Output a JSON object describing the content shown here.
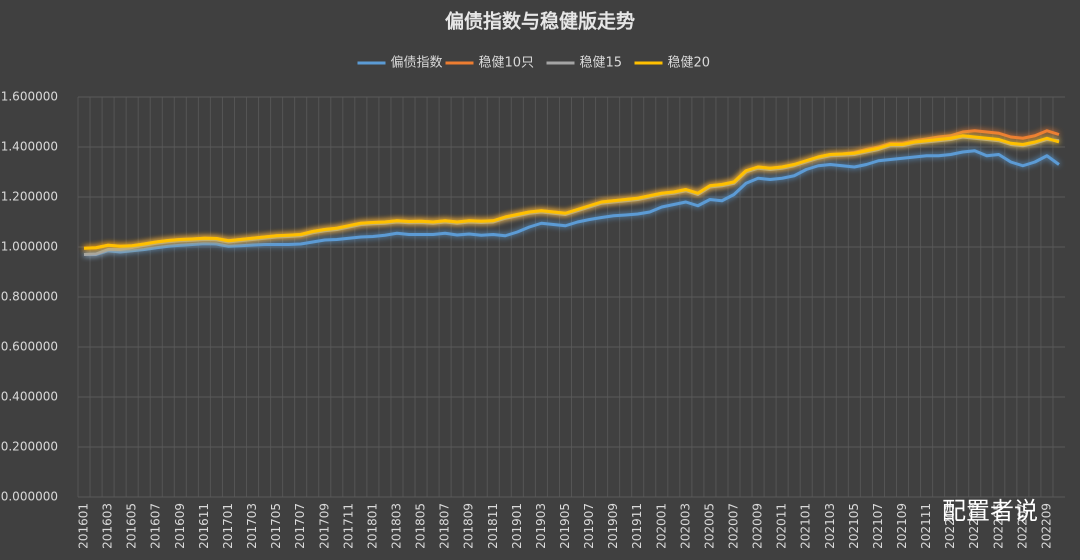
{
  "chart_data": {
    "type": "line",
    "title": "偏债指数与稳健版走势",
    "watermark": "配置者说",
    "categories": [
      "201601",
      null,
      "201603",
      null,
      "201605",
      null,
      "201607",
      null,
      "201609",
      null,
      "201611",
      null,
      "201701",
      null,
      "201703",
      null,
      "201705",
      null,
      "201707",
      null,
      "201709",
      null,
      "201711",
      null,
      "201801",
      null,
      "201803",
      null,
      "201805",
      null,
      "201807",
      null,
      "201809",
      null,
      "201811",
      null,
      "201901",
      null,
      "201903",
      null,
      "201905",
      null,
      "201907",
      null,
      "201909",
      null,
      "201911",
      null,
      "202001",
      null,
      "202003",
      null,
      "202005",
      null,
      "202007",
      null,
      "202009",
      null,
      "202011",
      null,
      "202101",
      null,
      "202103",
      null,
      "202105",
      null,
      "202107",
      null,
      "202109",
      null,
      "202111",
      null,
      "202201",
      null,
      "202203",
      null,
      "202205",
      null,
      "202207",
      null,
      "202209",
      null
    ],
    "series": [
      {
        "name": "偏债指数",
        "color": "#5b9bd5",
        "values": [
          0.97,
          0.97,
          0.985,
          0.98,
          0.985,
          0.99,
          0.997,
          1.003,
          1.007,
          1.01,
          1.013,
          1.012,
          1.003,
          1.005,
          1.008,
          1.01,
          1.01,
          1.01,
          1.012,
          1.02,
          1.028,
          1.03,
          1.035,
          1.04,
          1.042,
          1.047,
          1.055,
          1.05,
          1.05,
          1.05,
          1.055,
          1.048,
          1.052,
          1.047,
          1.05,
          1.045,
          1.06,
          1.08,
          1.095,
          1.09,
          1.085,
          1.1,
          1.11,
          1.118,
          1.125,
          1.128,
          1.132,
          1.14,
          1.16,
          1.17,
          1.18,
          1.165,
          1.19,
          1.185,
          1.21,
          1.255,
          1.275,
          1.27,
          1.275,
          1.285,
          1.31,
          1.325,
          1.33,
          1.325,
          1.32,
          1.33,
          1.345,
          1.35,
          1.355,
          1.36,
          1.365,
          1.365,
          1.37,
          1.38,
          1.385,
          1.365,
          1.37,
          1.34,
          1.325,
          1.34,
          1.365,
          1.33
        ]
      },
      {
        "name": "稳健10只",
        "color": "#ed7d31",
        "values": [
          0.995,
          0.997,
          1.007,
          1.003,
          1.005,
          1.012,
          1.02,
          1.026,
          1.03,
          1.032,
          1.035,
          1.034,
          1.025,
          1.03,
          1.035,
          1.04,
          1.045,
          1.047,
          1.05,
          1.062,
          1.07,
          1.075,
          1.085,
          1.095,
          1.098,
          1.1,
          1.105,
          1.102,
          1.103,
          1.1,
          1.105,
          1.1,
          1.105,
          1.103,
          1.105,
          1.12,
          1.13,
          1.14,
          1.145,
          1.14,
          1.135,
          1.15,
          1.165,
          1.18,
          1.185,
          1.19,
          1.195,
          1.205,
          1.215,
          1.22,
          1.23,
          1.215,
          1.245,
          1.25,
          1.26,
          1.305,
          1.32,
          1.315,
          1.32,
          1.33,
          1.345,
          1.36,
          1.37,
          1.372,
          1.378,
          1.39,
          1.4,
          1.415,
          1.415,
          1.425,
          1.432,
          1.44,
          1.445,
          1.46,
          1.465,
          1.46,
          1.455,
          1.44,
          1.435,
          1.445,
          1.465,
          1.45
        ]
      },
      {
        "name": "稳健15",
        "color": "#a5a5a5",
        "values": [
          0.97,
          0.972,
          0.99,
          0.99,
          0.998,
          1.007,
          1.015,
          1.021,
          1.025,
          1.027,
          1.03,
          1.029,
          1.02,
          1.025,
          1.03,
          1.035,
          1.04,
          1.042,
          1.045,
          1.057,
          1.065,
          1.07,
          1.08,
          1.09,
          1.093,
          1.095,
          1.1,
          1.097,
          1.098,
          1.095,
          1.1,
          1.095,
          1.1,
          1.098,
          1.1,
          1.115,
          1.125,
          1.135,
          1.14,
          1.135,
          1.13,
          1.145,
          1.16,
          1.175,
          1.18,
          1.185,
          1.19,
          1.2,
          1.21,
          1.215,
          1.225,
          1.21,
          1.24,
          1.245,
          1.255,
          1.3,
          1.315,
          1.31,
          1.315,
          1.325,
          1.34,
          1.355,
          1.365,
          1.367,
          1.37,
          1.38,
          1.39,
          1.405,
          1.405,
          1.415,
          1.42,
          1.425,
          1.43,
          1.44,
          1.435,
          1.43,
          1.425,
          1.41,
          1.405,
          1.415,
          1.43,
          1.425
        ]
      },
      {
        "name": "稳健20",
        "color": "#ffc000",
        "values": [
          0.995,
          0.997,
          1.007,
          1.003,
          1.005,
          1.012,
          1.02,
          1.026,
          1.03,
          1.032,
          1.035,
          1.034,
          1.025,
          1.03,
          1.035,
          1.04,
          1.045,
          1.047,
          1.05,
          1.062,
          1.07,
          1.075,
          1.085,
          1.095,
          1.098,
          1.1,
          1.105,
          1.102,
          1.103,
          1.1,
          1.105,
          1.1,
          1.105,
          1.103,
          1.105,
          1.12,
          1.13,
          1.14,
          1.145,
          1.14,
          1.135,
          1.15,
          1.165,
          1.18,
          1.185,
          1.19,
          1.195,
          1.205,
          1.215,
          1.22,
          1.23,
          1.215,
          1.245,
          1.25,
          1.26,
          1.305,
          1.32,
          1.315,
          1.32,
          1.33,
          1.345,
          1.36,
          1.37,
          1.372,
          1.375,
          1.385,
          1.395,
          1.41,
          1.41,
          1.42,
          1.425,
          1.43,
          1.435,
          1.445,
          1.44,
          1.435,
          1.43,
          1.415,
          1.41,
          1.42,
          1.435,
          1.42
        ]
      }
    ],
    "ylim": [
      0,
      1.6
    ],
    "yticks": [
      {
        "value": 0,
        "label": "0.000000"
      },
      {
        "value": 0.2,
        "label": "0.200000"
      },
      {
        "value": 0.4,
        "label": "0.400000"
      },
      {
        "value": 0.6,
        "label": "0.600000"
      },
      {
        "value": 0.8,
        "label": "0.800000"
      },
      {
        "value": 1,
        "label": "1.000000"
      },
      {
        "value": 1.2,
        "label": "1.200000"
      },
      {
        "value": 1.4,
        "label": "1.400000"
      },
      {
        "value": 1.6,
        "label": "1.600000"
      }
    ],
    "grid": true
  }
}
